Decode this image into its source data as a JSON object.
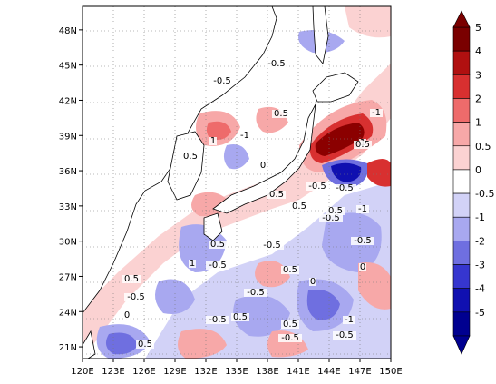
{
  "map": {
    "lon_labels": [
      "120E",
      "123E",
      "126E",
      "129E",
      "132E",
      "135E",
      "138E",
      "141E",
      "144E",
      "147E",
      "150E"
    ],
    "lat_labels": [
      "21N",
      "24N",
      "27N",
      "30N",
      "33N",
      "36N",
      "39N",
      "42N",
      "45N",
      "48N"
    ],
    "lon_range": [
      120,
      150
    ],
    "lat_range": [
      20,
      50
    ],
    "contour_labels": [
      "-0.5",
      "0.5",
      "1",
      "-1",
      "0",
      "-0.5",
      "0.5",
      "-1",
      "1",
      "0.5",
      "-0.5",
      "-0.5",
      "0.5",
      "-0.5",
      "0.5",
      "1",
      "-0.5",
      "0.5",
      "-0.5",
      "-1",
      "0.5",
      "-0.5",
      "0",
      "0.5",
      "-0.5",
      "-0.5",
      "0.5",
      "-1",
      "0.5",
      "-0.5",
      "0",
      "-0.5",
      "0.5",
      "0.5",
      "-0.5",
      "0"
    ]
  },
  "colorbar": {
    "labels": [
      "5",
      "4",
      "3",
      "2",
      "1",
      "0.5",
      "0",
      "-0.5",
      "-1",
      "-2",
      "-3",
      "-4",
      "-5"
    ],
    "colors": [
      "#7a0000",
      "#b01010",
      "#d83030",
      "#ee6b6b",
      "#f7a8a8",
      "#fbd2d2",
      "#ffffff",
      "#d2d2f7",
      "#a8a8f0",
      "#6f6fe0",
      "#3636cf",
      "#1010b0",
      "#000090"
    ]
  },
  "colors": {
    "positive_strong": "#8b0000",
    "negative_strong": "#0000a0",
    "land": "#ffffff",
    "coast": "#000000"
  }
}
